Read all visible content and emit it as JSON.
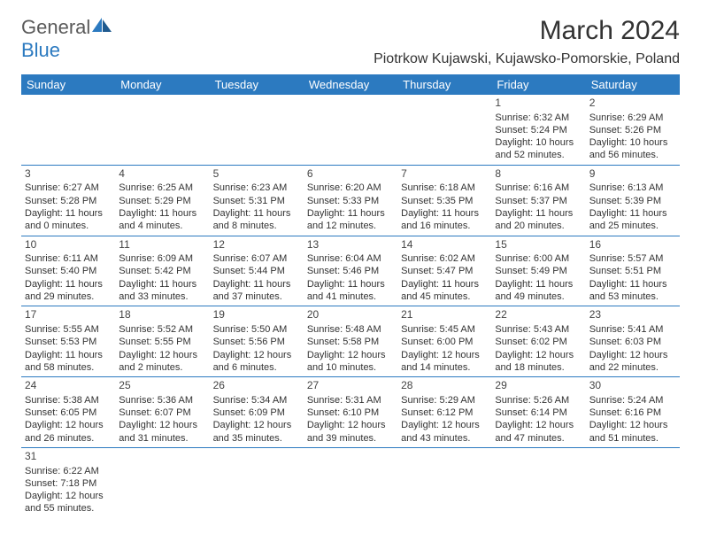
{
  "logo": {
    "text1": "General",
    "text2": "Blue",
    "color_gray": "#5a5a5a",
    "color_blue": "#2c7ac0"
  },
  "title": "March 2024",
  "location": "Piotrkow Kujawski, Kujawsko-Pomorskie, Poland",
  "header_bg": "#2c7ac0",
  "header_text_color": "#ffffff",
  "border_color": "#2c7ac0",
  "cell_fontsize": 11,
  "days_of_week": [
    "Sunday",
    "Monday",
    "Tuesday",
    "Wednesday",
    "Thursday",
    "Friday",
    "Saturday"
  ],
  "weeks": [
    [
      null,
      null,
      null,
      null,
      null,
      {
        "n": "1",
        "sr": "Sunrise: 6:32 AM",
        "ss": "Sunset: 5:24 PM",
        "d1": "Daylight: 10 hours",
        "d2": "and 52 minutes."
      },
      {
        "n": "2",
        "sr": "Sunrise: 6:29 AM",
        "ss": "Sunset: 5:26 PM",
        "d1": "Daylight: 10 hours",
        "d2": "and 56 minutes."
      }
    ],
    [
      {
        "n": "3",
        "sr": "Sunrise: 6:27 AM",
        "ss": "Sunset: 5:28 PM",
        "d1": "Daylight: 11 hours",
        "d2": "and 0 minutes."
      },
      {
        "n": "4",
        "sr": "Sunrise: 6:25 AM",
        "ss": "Sunset: 5:29 PM",
        "d1": "Daylight: 11 hours",
        "d2": "and 4 minutes."
      },
      {
        "n": "5",
        "sr": "Sunrise: 6:23 AM",
        "ss": "Sunset: 5:31 PM",
        "d1": "Daylight: 11 hours",
        "d2": "and 8 minutes."
      },
      {
        "n": "6",
        "sr": "Sunrise: 6:20 AM",
        "ss": "Sunset: 5:33 PM",
        "d1": "Daylight: 11 hours",
        "d2": "and 12 minutes."
      },
      {
        "n": "7",
        "sr": "Sunrise: 6:18 AM",
        "ss": "Sunset: 5:35 PM",
        "d1": "Daylight: 11 hours",
        "d2": "and 16 minutes."
      },
      {
        "n": "8",
        "sr": "Sunrise: 6:16 AM",
        "ss": "Sunset: 5:37 PM",
        "d1": "Daylight: 11 hours",
        "d2": "and 20 minutes."
      },
      {
        "n": "9",
        "sr": "Sunrise: 6:13 AM",
        "ss": "Sunset: 5:39 PM",
        "d1": "Daylight: 11 hours",
        "d2": "and 25 minutes."
      }
    ],
    [
      {
        "n": "10",
        "sr": "Sunrise: 6:11 AM",
        "ss": "Sunset: 5:40 PM",
        "d1": "Daylight: 11 hours",
        "d2": "and 29 minutes."
      },
      {
        "n": "11",
        "sr": "Sunrise: 6:09 AM",
        "ss": "Sunset: 5:42 PM",
        "d1": "Daylight: 11 hours",
        "d2": "and 33 minutes."
      },
      {
        "n": "12",
        "sr": "Sunrise: 6:07 AM",
        "ss": "Sunset: 5:44 PM",
        "d1": "Daylight: 11 hours",
        "d2": "and 37 minutes."
      },
      {
        "n": "13",
        "sr": "Sunrise: 6:04 AM",
        "ss": "Sunset: 5:46 PM",
        "d1": "Daylight: 11 hours",
        "d2": "and 41 minutes."
      },
      {
        "n": "14",
        "sr": "Sunrise: 6:02 AM",
        "ss": "Sunset: 5:47 PM",
        "d1": "Daylight: 11 hours",
        "d2": "and 45 minutes."
      },
      {
        "n": "15",
        "sr": "Sunrise: 6:00 AM",
        "ss": "Sunset: 5:49 PM",
        "d1": "Daylight: 11 hours",
        "d2": "and 49 minutes."
      },
      {
        "n": "16",
        "sr": "Sunrise: 5:57 AM",
        "ss": "Sunset: 5:51 PM",
        "d1": "Daylight: 11 hours",
        "d2": "and 53 minutes."
      }
    ],
    [
      {
        "n": "17",
        "sr": "Sunrise: 5:55 AM",
        "ss": "Sunset: 5:53 PM",
        "d1": "Daylight: 11 hours",
        "d2": "and 58 minutes."
      },
      {
        "n": "18",
        "sr": "Sunrise: 5:52 AM",
        "ss": "Sunset: 5:55 PM",
        "d1": "Daylight: 12 hours",
        "d2": "and 2 minutes."
      },
      {
        "n": "19",
        "sr": "Sunrise: 5:50 AM",
        "ss": "Sunset: 5:56 PM",
        "d1": "Daylight: 12 hours",
        "d2": "and 6 minutes."
      },
      {
        "n": "20",
        "sr": "Sunrise: 5:48 AM",
        "ss": "Sunset: 5:58 PM",
        "d1": "Daylight: 12 hours",
        "d2": "and 10 minutes."
      },
      {
        "n": "21",
        "sr": "Sunrise: 5:45 AM",
        "ss": "Sunset: 6:00 PM",
        "d1": "Daylight: 12 hours",
        "d2": "and 14 minutes."
      },
      {
        "n": "22",
        "sr": "Sunrise: 5:43 AM",
        "ss": "Sunset: 6:02 PM",
        "d1": "Daylight: 12 hours",
        "d2": "and 18 minutes."
      },
      {
        "n": "23",
        "sr": "Sunrise: 5:41 AM",
        "ss": "Sunset: 6:03 PM",
        "d1": "Daylight: 12 hours",
        "d2": "and 22 minutes."
      }
    ],
    [
      {
        "n": "24",
        "sr": "Sunrise: 5:38 AM",
        "ss": "Sunset: 6:05 PM",
        "d1": "Daylight: 12 hours",
        "d2": "and 26 minutes."
      },
      {
        "n": "25",
        "sr": "Sunrise: 5:36 AM",
        "ss": "Sunset: 6:07 PM",
        "d1": "Daylight: 12 hours",
        "d2": "and 31 minutes."
      },
      {
        "n": "26",
        "sr": "Sunrise: 5:34 AM",
        "ss": "Sunset: 6:09 PM",
        "d1": "Daylight: 12 hours",
        "d2": "and 35 minutes."
      },
      {
        "n": "27",
        "sr": "Sunrise: 5:31 AM",
        "ss": "Sunset: 6:10 PM",
        "d1": "Daylight: 12 hours",
        "d2": "and 39 minutes."
      },
      {
        "n": "28",
        "sr": "Sunrise: 5:29 AM",
        "ss": "Sunset: 6:12 PM",
        "d1": "Daylight: 12 hours",
        "d2": "and 43 minutes."
      },
      {
        "n": "29",
        "sr": "Sunrise: 5:26 AM",
        "ss": "Sunset: 6:14 PM",
        "d1": "Daylight: 12 hours",
        "d2": "and 47 minutes."
      },
      {
        "n": "30",
        "sr": "Sunrise: 5:24 AM",
        "ss": "Sunset: 6:16 PM",
        "d1": "Daylight: 12 hours",
        "d2": "and 51 minutes."
      }
    ],
    [
      {
        "n": "31",
        "sr": "Sunrise: 6:22 AM",
        "ss": "Sunset: 7:18 PM",
        "d1": "Daylight: 12 hours",
        "d2": "and 55 minutes."
      },
      null,
      null,
      null,
      null,
      null,
      null
    ]
  ]
}
